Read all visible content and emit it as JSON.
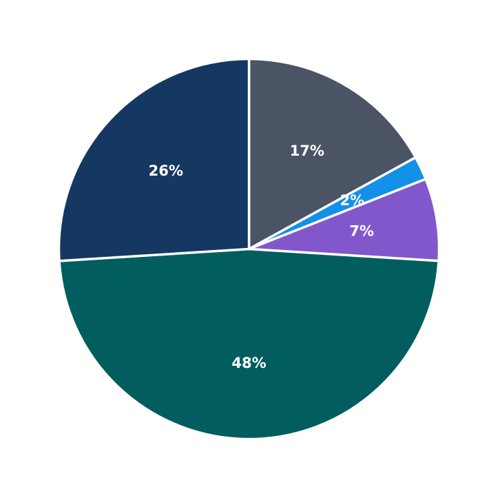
{
  "chart_data": {
    "type": "pie",
    "start": "12 o'clock",
    "direction": "clockwise",
    "slices": [
      {
        "value": 17,
        "label": "17%",
        "color": "#4a5464"
      },
      {
        "value": 2,
        "label": "2%",
        "color": "#1391e8"
      },
      {
        "value": 7,
        "label": "7%",
        "color": "#8357cc"
      },
      {
        "value": 48,
        "label": "48%",
        "color": "#025e5e"
      },
      {
        "value": 26,
        "label": "26%",
        "color": "#143862"
      }
    ]
  }
}
